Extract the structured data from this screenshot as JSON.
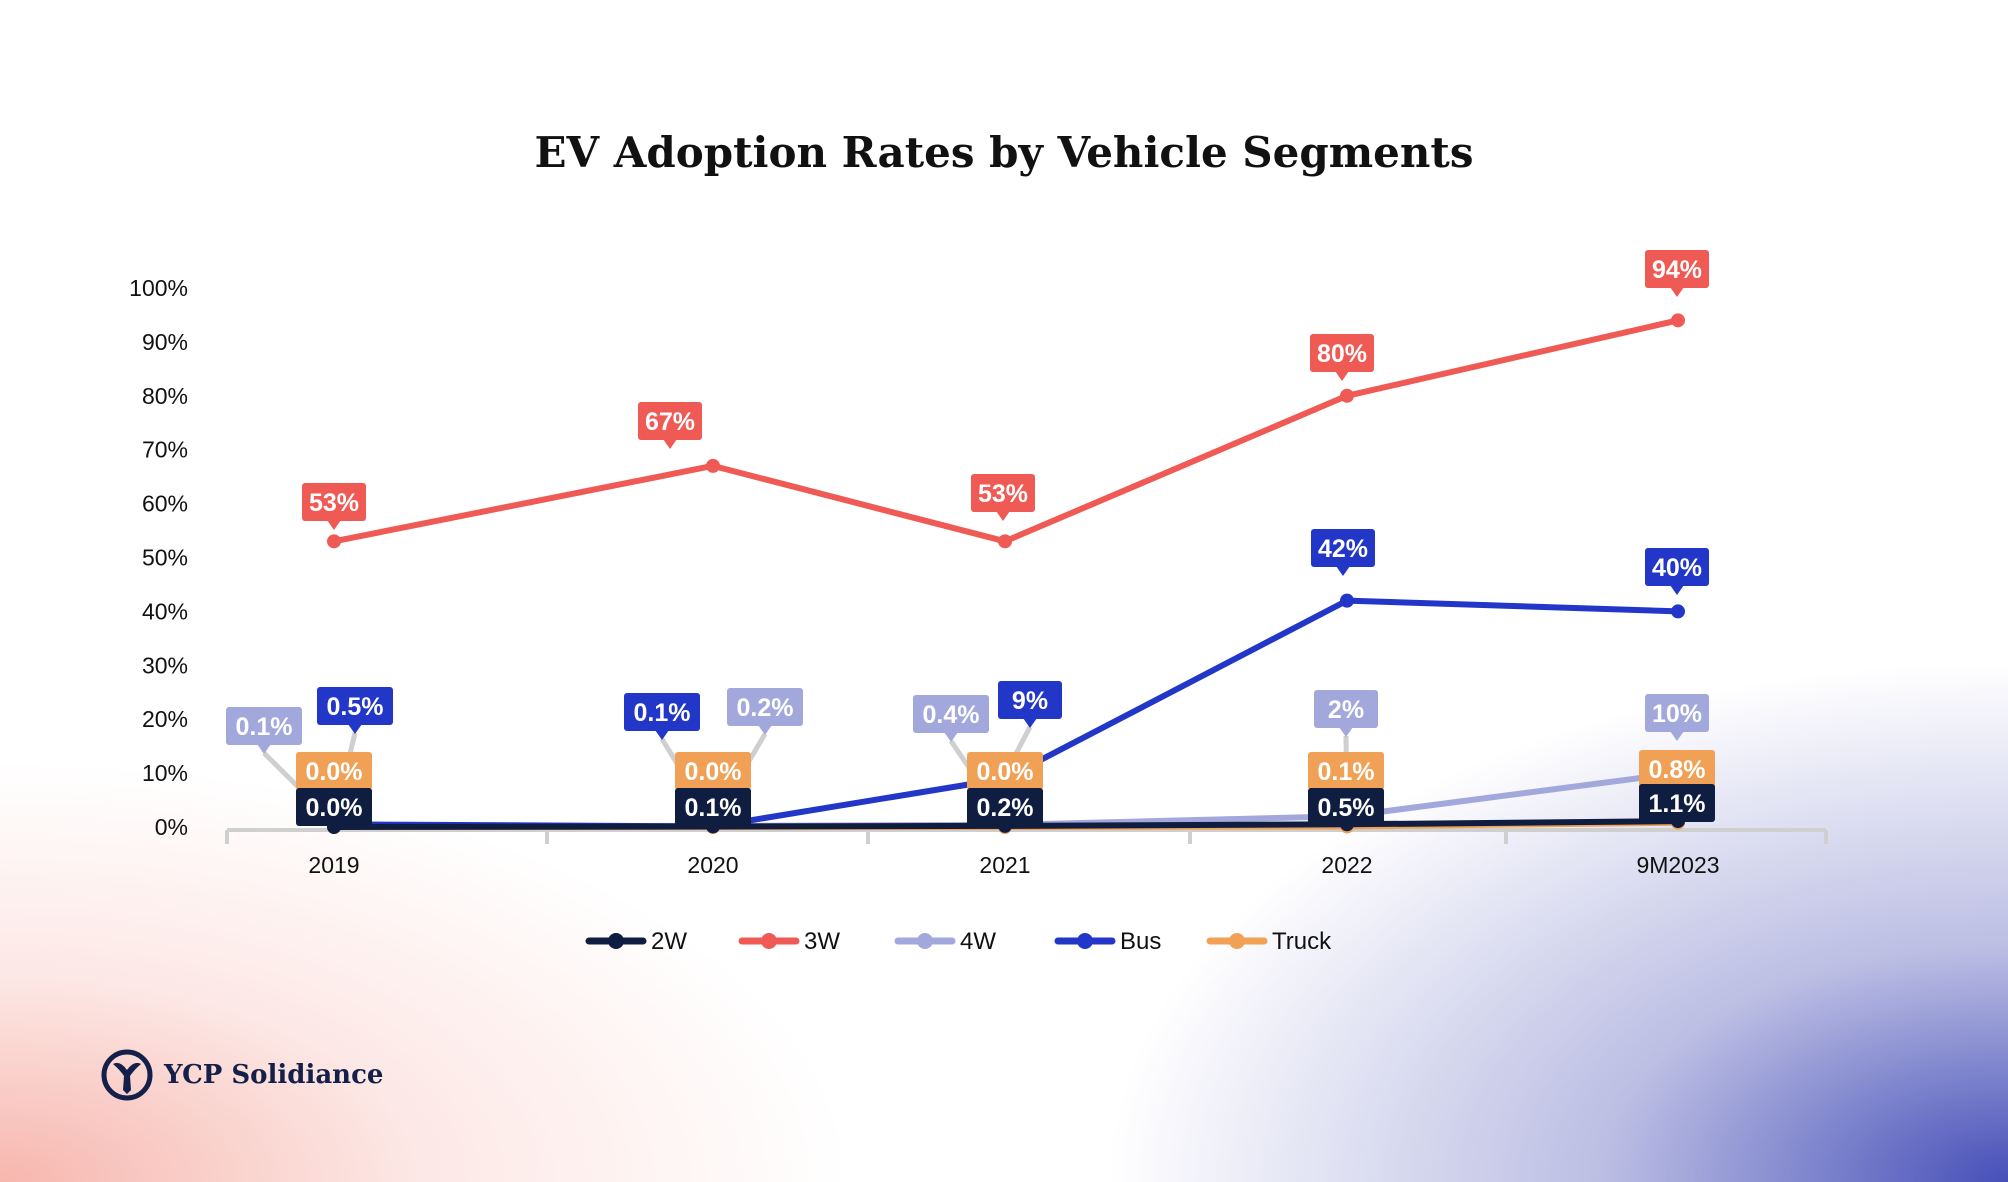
{
  "brand": {
    "name": "YCP Solidiance"
  },
  "chart_data": {
    "type": "line",
    "title": "EV Adoption Rates by Vehicle Segments",
    "xlabel": "",
    "ylabel": "",
    "categories": [
      "2019",
      "2020",
      "2021",
      "2022",
      "9M2023"
    ],
    "ylim": [
      0,
      100
    ],
    "yticks": [
      "0%",
      "10%",
      "20%",
      "30%",
      "40%",
      "50%",
      "60%",
      "70%",
      "80%",
      "90%",
      "100%"
    ],
    "legend_position": "bottom",
    "series": [
      {
        "name": "4W",
        "color": "#a3a8dc",
        "values": [
          0.1,
          0.2,
          0.4,
          2,
          10
        ],
        "labels": [
          "0.1%",
          "0.2%",
          "0.4%",
          "2%",
          "10%"
        ]
      },
      {
        "name": "Bus",
        "color": "#2236c8",
        "values": [
          0.5,
          0.1,
          9,
          42,
          40
        ],
        "labels": [
          "0.5%",
          "0.1%",
          "9%",
          "42%",
          "40%"
        ]
      },
      {
        "name": "3W",
        "color": "#ef5a55",
        "values": [
          53,
          67,
          53,
          80,
          94
        ],
        "labels": [
          "53%",
          "67%",
          "53%",
          "80%",
          "94%"
        ]
      },
      {
        "name": "Truck",
        "color": "#f0a155",
        "values": [
          0,
          0,
          0,
          0.1,
          0.8
        ],
        "labels": [
          "0.0%",
          "0.0%",
          "0.0%",
          "0.1%",
          "0.8%"
        ]
      },
      {
        "name": "2W",
        "color": "#0f1d40",
        "values": [
          0,
          0.1,
          0.2,
          0.5,
          1.1
        ],
        "labels": [
          "0.0%",
          "0.1%",
          "0.2%",
          "0.5%",
          "1.1%"
        ]
      }
    ],
    "legend": [
      "2W",
      "3W",
      "4W",
      "Bus",
      "Truck"
    ]
  }
}
